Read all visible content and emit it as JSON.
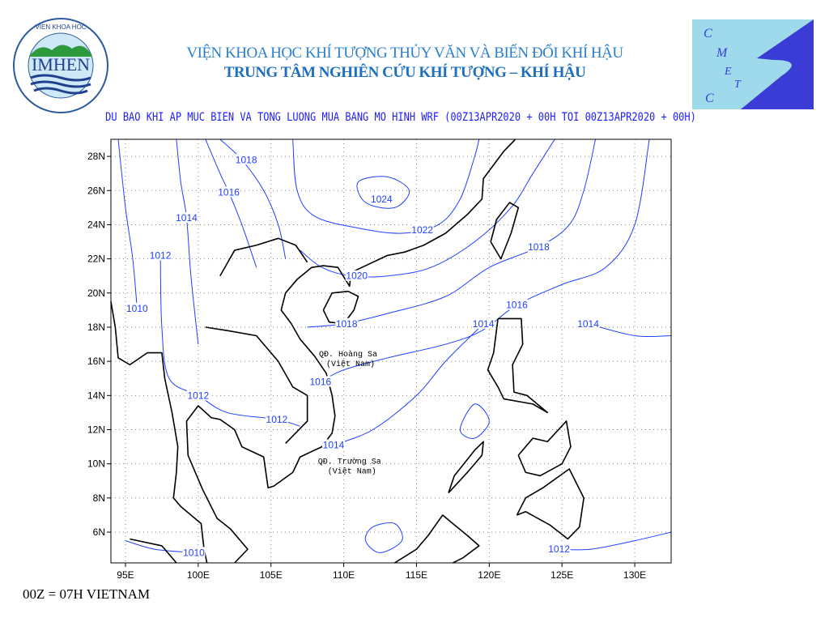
{
  "header": {
    "institute": "VIỆN KHOA HỌC KHÍ TƯỢNG THỦY VĂN VÀ BIẾN ĐỔI KHÍ HẬU",
    "center": "TRUNG TÂM NGHIÊN CỨU KHÍ TƯỢNG – KHÍ HẬU",
    "subtitle": "DU BAO KHI AP MUC BIEN VA TONG LUONG MUA BANG MO HINH WRF (00Z13APR2020 + 00H TOI 00Z13APR2020 + 00H)"
  },
  "logos": {
    "left": {
      "text": "IMHEN",
      "ring_top": "VIỆN KHOA HỌC",
      "ring_bottom": "KHÍ TƯỢNG THỦY VĂN VÀ BIẾN ĐỔI KHÍ HẬU"
    },
    "right": {
      "text": "CMETC"
    }
  },
  "map": {
    "lon_range": [
      94,
      132.5
    ],
    "lat_range": [
      4.2,
      29
    ],
    "x_ticks": [
      "95E",
      "100E",
      "105E",
      "110E",
      "115E",
      "120E",
      "125E",
      "130E"
    ],
    "x_tick_values": [
      95,
      100,
      105,
      110,
      115,
      120,
      125,
      130
    ],
    "y_ticks": [
      "6N",
      "8N",
      "10N",
      "12N",
      "14N",
      "16N",
      "18N",
      "20N",
      "22N",
      "24N",
      "26N",
      "28N"
    ],
    "y_tick_values": [
      6,
      8,
      10,
      12,
      14,
      16,
      18,
      20,
      22,
      24,
      26,
      28
    ],
    "grid": "dotted",
    "colors": {
      "isobar": "#2040ff",
      "coast": "#000000"
    },
    "isobar_labels": [
      {
        "text": "1018",
        "lon": 103.3,
        "lat": 27.8
      },
      {
        "text": "1016",
        "lon": 102.1,
        "lat": 25.9
      },
      {
        "text": "1014",
        "lon": 99.2,
        "lat": 24.4
      },
      {
        "text": "1012",
        "lon": 97.4,
        "lat": 22.2
      },
      {
        "text": "1010",
        "lon": 95.8,
        "lat": 19.1
      },
      {
        "text": "1024",
        "lon": 112.6,
        "lat": 25.5
      },
      {
        "text": "1022",
        "lon": 115.4,
        "lat": 23.7
      },
      {
        "text": "1020",
        "lon": 110.9,
        "lat": 21.0
      },
      {
        "text": "1018",
        "lon": 110.2,
        "lat": 18.2
      },
      {
        "text": "1018",
        "lon": 123.4,
        "lat": 22.7
      },
      {
        "text": "1016",
        "lon": 121.9,
        "lat": 19.3
      },
      {
        "text": "1014",
        "lon": 119.6,
        "lat": 18.2
      },
      {
        "text": "1014",
        "lon": 126.8,
        "lat": 18.2
      },
      {
        "text": "1016",
        "lon": 108.4,
        "lat": 14.8
      },
      {
        "text": "1012",
        "lon": 100.0,
        "lat": 14.0
      },
      {
        "text": "1012",
        "lon": 105.4,
        "lat": 12.6
      },
      {
        "text": "1014",
        "lon": 109.3,
        "lat": 11.1
      },
      {
        "text": "1012",
        "lon": 124.8,
        "lat": 5.0
      },
      {
        "text": "1010",
        "lon": 99.7,
        "lat": 4.8
      }
    ],
    "places": [
      {
        "line1": "QĐ. Hoàng Sa",
        "line2": "(Việt Nam)",
        "lon": 110.3,
        "lat": 16.3
      },
      {
        "line1": "QĐ. Trường Sa",
        "line2": "(Việt Nam)",
        "lon": 110.4,
        "lat": 10.0
      }
    ]
  },
  "footer": "00Z = 07H VIETNAM"
}
